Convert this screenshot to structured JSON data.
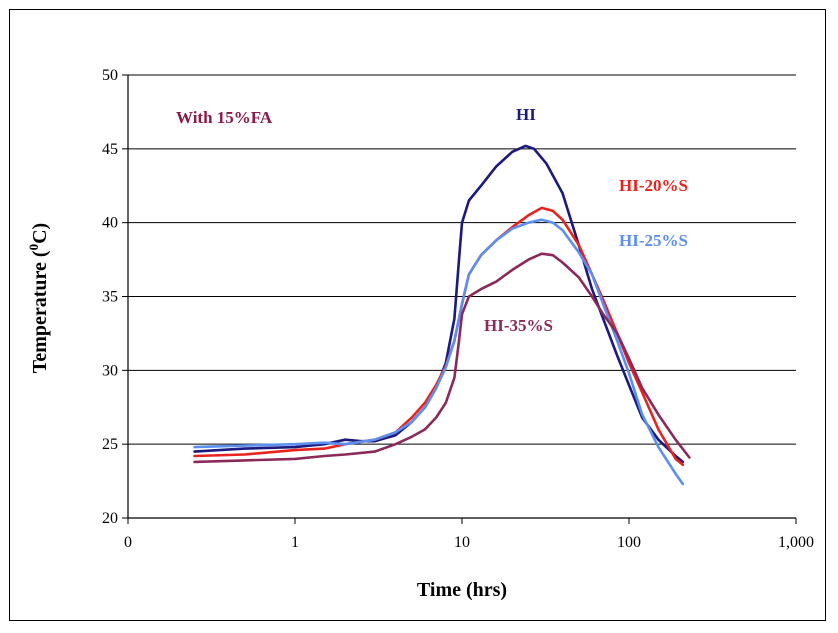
{
  "chart_data": {
    "type": "line",
    "xlabel": "Time (hrs)",
    "ylabel_main": "Temperature (",
    "ylabel_sup": "0",
    "ylabel_end": "C)",
    "x_scale": "log",
    "x_ticks": [
      {
        "value": 0.1,
        "label": "0"
      },
      {
        "value": 1,
        "label": "1"
      },
      {
        "value": 10,
        "label": "10"
      },
      {
        "value": 100,
        "label": "100"
      },
      {
        "value": 1000,
        "label": "1,000"
      }
    ],
    "y_ticks": [
      20,
      25,
      30,
      35,
      40,
      45,
      50
    ],
    "ylim": [
      20,
      50
    ],
    "grid": "horizontal",
    "legend": "none",
    "annotations": [
      {
        "id": "note",
        "text": "With 15%FA",
        "color": "#8b1a4a"
      },
      {
        "id": "hi",
        "text": "HI",
        "color": "#1a1a80"
      },
      {
        "id": "hi20",
        "text": "HI-20%S",
        "color": "#e8231f"
      },
      {
        "id": "hi25",
        "text": "HI-25%S",
        "color": "#5b8ff0"
      },
      {
        "id": "hi35",
        "text": "HI-35%S",
        "color": "#8b2a5a"
      }
    ],
    "series": [
      {
        "name": "HI",
        "color": "#1a1a80",
        "points": [
          [
            0.25,
            24.5
          ],
          [
            0.5,
            24.7
          ],
          [
            1,
            24.8
          ],
          [
            1.5,
            25.0
          ],
          [
            2,
            25.3
          ],
          [
            2.5,
            25.2
          ],
          [
            3,
            25.2
          ],
          [
            4,
            25.6
          ],
          [
            5,
            26.5
          ],
          [
            6,
            27.5
          ],
          [
            7,
            28.8
          ],
          [
            8,
            30.5
          ],
          [
            9,
            33.5
          ],
          [
            9.6,
            37.5
          ],
          [
            10,
            40.0
          ],
          [
            11,
            41.5
          ],
          [
            13,
            42.5
          ],
          [
            16,
            43.8
          ],
          [
            20,
            44.8
          ],
          [
            24,
            45.2
          ],
          [
            27,
            45.0
          ],
          [
            32,
            44.0
          ],
          [
            40,
            42.0
          ],
          [
            50,
            38.5
          ],
          [
            60,
            35.5
          ],
          [
            70,
            33.5
          ],
          [
            85,
            31.0
          ],
          [
            100,
            29.0
          ],
          [
            120,
            26.8
          ],
          [
            150,
            25.3
          ],
          [
            190,
            24.2
          ],
          [
            210,
            23.8
          ]
        ]
      },
      {
        "name": "HI-20%S",
        "color": "#e8231f",
        "points": [
          [
            0.25,
            24.2
          ],
          [
            0.5,
            24.3
          ],
          [
            1,
            24.6
          ],
          [
            1.5,
            24.7
          ],
          [
            2,
            25.0
          ],
          [
            3,
            25.3
          ],
          [
            4,
            25.8
          ],
          [
            5,
            26.8
          ],
          [
            6,
            27.8
          ],
          [
            7,
            29.0
          ],
          [
            8,
            30.3
          ],
          [
            9,
            32.0
          ],
          [
            10,
            34.5
          ],
          [
            11,
            36.5
          ],
          [
            13,
            37.8
          ],
          [
            16,
            38.8
          ],
          [
            20,
            39.7
          ],
          [
            25,
            40.5
          ],
          [
            30,
            41.0
          ],
          [
            35,
            40.8
          ],
          [
            40,
            40.2
          ],
          [
            50,
            38.5
          ],
          [
            60,
            36.5
          ],
          [
            70,
            34.8
          ],
          [
            85,
            32.5
          ],
          [
            100,
            30.5
          ],
          [
            120,
            28.5
          ],
          [
            150,
            26.0
          ],
          [
            190,
            24.0
          ],
          [
            210,
            23.6
          ]
        ]
      },
      {
        "name": "HI-25%S",
        "color": "#5b8ff0",
        "points": [
          [
            0.25,
            24.8
          ],
          [
            0.5,
            24.9
          ],
          [
            1,
            25.0
          ],
          [
            1.5,
            25.1
          ],
          [
            2,
            25.0
          ],
          [
            3,
            25.3
          ],
          [
            4,
            25.8
          ],
          [
            5,
            26.5
          ],
          [
            6,
            27.5
          ],
          [
            7,
            28.8
          ],
          [
            8,
            30.2
          ],
          [
            9,
            32.0
          ],
          [
            10,
            34.5
          ],
          [
            11,
            36.5
          ],
          [
            13,
            37.8
          ],
          [
            16,
            38.8
          ],
          [
            20,
            39.6
          ],
          [
            25,
            40.0
          ],
          [
            30,
            40.2
          ],
          [
            35,
            40.0
          ],
          [
            40,
            39.5
          ],
          [
            50,
            38.0
          ],
          [
            60,
            36.5
          ],
          [
            70,
            34.5
          ],
          [
            85,
            32.0
          ],
          [
            100,
            29.8
          ],
          [
            120,
            27.0
          ],
          [
            150,
            24.8
          ],
          [
            190,
            23.0
          ],
          [
            210,
            22.3
          ]
        ]
      },
      {
        "name": "HI-35%S",
        "color": "#8b2a5a",
        "points": [
          [
            0.25,
            23.8
          ],
          [
            0.5,
            23.9
          ],
          [
            1,
            24.0
          ],
          [
            1.5,
            24.2
          ],
          [
            2,
            24.3
          ],
          [
            3,
            24.5
          ],
          [
            4,
            25.0
          ],
          [
            5,
            25.5
          ],
          [
            6,
            26.0
          ],
          [
            7,
            26.8
          ],
          [
            8,
            27.8
          ],
          [
            9,
            29.5
          ],
          [
            9.6,
            32.0
          ],
          [
            10,
            33.8
          ],
          [
            11,
            35.0
          ],
          [
            13,
            35.5
          ],
          [
            16,
            36.0
          ],
          [
            20,
            36.8
          ],
          [
            25,
            37.5
          ],
          [
            30,
            37.9
          ],
          [
            35,
            37.8
          ],
          [
            40,
            37.3
          ],
          [
            50,
            36.3
          ],
          [
            60,
            35.0
          ],
          [
            70,
            33.8
          ],
          [
            85,
            32.5
          ],
          [
            100,
            30.8
          ],
          [
            120,
            28.8
          ],
          [
            150,
            27.0
          ],
          [
            190,
            25.3
          ],
          [
            230,
            24.1
          ]
        ]
      }
    ]
  }
}
